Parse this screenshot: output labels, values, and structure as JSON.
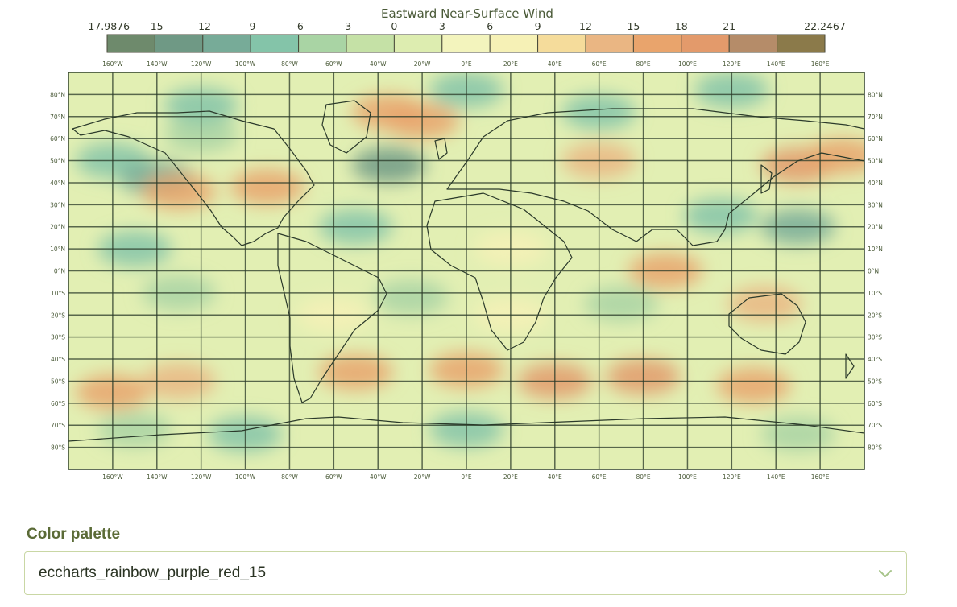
{
  "chart_data": {
    "type": "heatmap",
    "title": "Eastward Near-Surface Wind",
    "colorbar": {
      "min": -17.9876,
      "max": 22.2467,
      "tick_labels": [
        "-17.9876",
        "-15",
        "-12",
        "-9",
        "-6",
        "-3",
        "0",
        "3",
        "6",
        "9",
        "12",
        "15",
        "18",
        "21",
        "22.2467"
      ],
      "bin_colors": [
        "#6e8a6c",
        "#6f9985",
        "#77ab98",
        "#84c4a9",
        "#a9d4a4",
        "#c5e1a6",
        "#ddedb0",
        "#f3f4bd",
        "#f6f1b6",
        "#f5dc9b",
        "#eab683",
        "#e9a46c",
        "#e39a6b",
        "#b58c69",
        "#8b7a4a"
      ]
    },
    "lon_ticks": [
      "160°W",
      "140°W",
      "120°W",
      "100°W",
      "80°W",
      "60°W",
      "40°W",
      "20°W",
      "0°E",
      "20°E",
      "40°E",
      "60°E",
      "80°E",
      "100°E",
      "120°E",
      "140°E",
      "160°E"
    ],
    "lat_ticks": [
      "80°N",
      "70°N",
      "60°N",
      "50°N",
      "40°N",
      "30°N",
      "20°N",
      "10°N",
      "0°N",
      "10°S",
      "20°S",
      "30°S",
      "40°S",
      "50°S",
      "60°S",
      "70°S",
      "80°S"
    ],
    "field_blobs": [
      {
        "lon": -160,
        "lat": 50,
        "value": -9
      },
      {
        "lon": -140,
        "lat": 42,
        "value": -10
      },
      {
        "lon": -35,
        "lat": 48,
        "value": -15
      },
      {
        "lon": -120,
        "lat": 62,
        "value": -6
      },
      {
        "lon": 150,
        "lat": 20,
        "value": -12
      },
      {
        "lon": 115,
        "lat": 25,
        "value": -9
      },
      {
        "lon": -50,
        "lat": 20,
        "value": -9
      },
      {
        "lon": -150,
        "lat": 10,
        "value": -8
      },
      {
        "lon": -130,
        "lat": -10,
        "value": -7
      },
      {
        "lon": 70,
        "lat": -15,
        "value": -7
      },
      {
        "lon": -25,
        "lat": -12,
        "value": -7
      },
      {
        "lon": 0,
        "lat": 82,
        "value": -9
      },
      {
        "lon": 120,
        "lat": 82,
        "value": -9
      },
      {
        "lon": -120,
        "lat": 75,
        "value": -8
      },
      {
        "lon": 60,
        "lat": 72,
        "value": -8
      },
      {
        "lon": 0,
        "lat": -72,
        "value": -8
      },
      {
        "lon": -100,
        "lat": -74,
        "value": -8
      },
      {
        "lon": 150,
        "lat": -74,
        "value": -7
      },
      {
        "lon": -150,
        "lat": -72,
        "value": -7
      },
      {
        "lon": 150,
        "lat": 48,
        "value": 15
      },
      {
        "lon": 170,
        "lat": 52,
        "value": 14
      },
      {
        "lon": -90,
        "lat": 38,
        "value": 12
      },
      {
        "lon": -35,
        "lat": 72,
        "value": 13
      },
      {
        "lon": -20,
        "lat": 68,
        "value": 12
      },
      {
        "lon": 0,
        "lat": -45,
        "value": 14
      },
      {
        "lon": -50,
        "lat": -46,
        "value": 13
      },
      {
        "lon": 40,
        "lat": -50,
        "value": 15
      },
      {
        "lon": 80,
        "lat": -48,
        "value": 15
      },
      {
        "lon": 130,
        "lat": -52,
        "value": 13
      },
      {
        "lon": -160,
        "lat": -55,
        "value": 14
      },
      {
        "lon": -130,
        "lat": -50,
        "value": 10
      },
      {
        "lon": 90,
        "lat": 0,
        "value": 12
      },
      {
        "lon": 135,
        "lat": -15,
        "value": 11
      },
      {
        "lon": -130,
        "lat": 36,
        "value": 12
      },
      {
        "lon": 60,
        "lat": 50,
        "value": 9
      },
      {
        "lon": 20,
        "lat": 10,
        "value": 6
      },
      {
        "lon": -60,
        "lat": -20,
        "value": 5
      },
      {
        "lon": 20,
        "lat": -20,
        "value": 5
      }
    ]
  },
  "color_palette": {
    "label": "Color palette",
    "selected": "eccharts_rainbow_purple_red_15",
    "chevron_icon": "chevron-down-icon"
  }
}
